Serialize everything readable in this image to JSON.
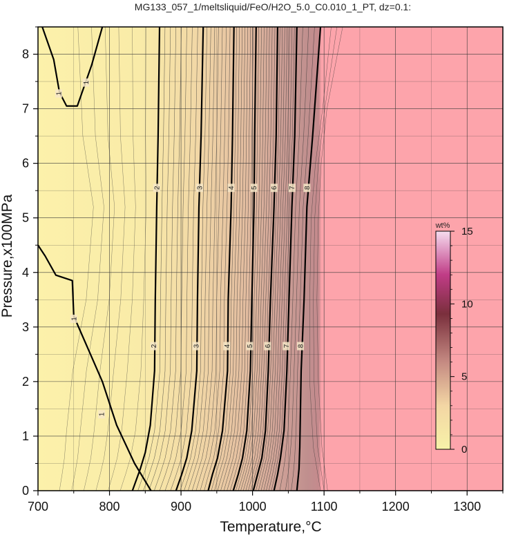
{
  "chart_data": {
    "type": "heatmap",
    "title": "MG133_057_1/meltsliquid/FeO/H2O_5.0_C0.010_1_PT, dz=0.1:",
    "xlabel": "Temperature,°C",
    "ylabel": "Pressure,x100MPa",
    "xlim": [
      700,
      1350
    ],
    "ylim": [
      0,
      8.5
    ],
    "x_ticks": [
      700,
      800,
      900,
      1000,
      1100,
      1200,
      1300
    ],
    "y_ticks": [
      0,
      1,
      2,
      3,
      4,
      5,
      6,
      7,
      8
    ],
    "grid": true,
    "colorbar": {
      "label": "wt%",
      "range": [
        0,
        15
      ],
      "ticks": [
        0,
        5,
        10,
        15
      ],
      "colors": [
        "#f7f2a8",
        "#f3d6a4",
        "#c58a82",
        "#7a2f3c",
        "#c03c86",
        "#f6dcef"
      ]
    },
    "region_colors": {
      "low": "#fcf0a8",
      "high": "#fda4ab"
    },
    "major_contours": [
      {
        "level": "1",
        "points": [
          [
            706,
            8.5
          ],
          [
            722,
            7.9
          ],
          [
            730,
            7.3
          ],
          [
            740,
            7.05
          ],
          [
            755,
            7.05
          ],
          [
            775,
            7.8
          ],
          [
            790,
            8.5
          ]
        ]
      },
      {
        "level": "1",
        "points": [
          [
            700,
            4.5
          ],
          [
            710,
            4.3
          ],
          [
            725,
            3.95
          ],
          [
            748,
            3.85
          ],
          [
            750,
            3.2
          ],
          [
            770,
            2.6
          ],
          [
            790,
            2.0
          ],
          [
            810,
            1.2
          ],
          [
            835,
            0.5
          ],
          [
            858,
            0.0
          ]
        ]
      },
      {
        "level": "2",
        "points": [
          [
            870,
            8.5
          ],
          [
            868,
            6.5
          ],
          [
            866,
            5.2
          ],
          [
            864,
            3.5
          ],
          [
            863,
            2.2
          ],
          [
            857,
            1.2
          ],
          [
            850,
            0.7
          ],
          [
            843,
            0.4
          ],
          [
            832,
            0.0
          ]
        ]
      },
      {
        "level": "3",
        "points": [
          [
            931,
            8.5
          ],
          [
            928,
            6.5
          ],
          [
            925,
            5.2
          ],
          [
            923,
            3.5
          ],
          [
            922,
            2.2
          ],
          [
            915,
            1.1
          ],
          [
            908,
            0.6
          ],
          [
            901,
            0.3
          ],
          [
            893,
            0.0
          ]
        ]
      },
      {
        "level": "4",
        "points": [
          [
            974,
            8.5
          ],
          [
            972,
            6.5
          ],
          [
            970,
            5.2
          ],
          [
            966,
            3.5
          ],
          [
            965,
            2.2
          ],
          [
            958,
            1.1
          ],
          [
            951,
            0.6
          ],
          [
            944,
            0.3
          ],
          [
            938,
            0.0
          ]
        ]
      },
      {
        "level": "5",
        "points": [
          [
            1005,
            8.5
          ],
          [
            1003,
            6.5
          ],
          [
            1002,
            5.2
          ],
          [
            999,
            3.5
          ],
          [
            997,
            2.2
          ],
          [
            992,
            1.1
          ],
          [
            986,
            0.6
          ],
          [
            980,
            0.3
          ],
          [
            973,
            0.0
          ]
        ]
      },
      {
        "level": "6",
        "points": [
          [
            1035,
            8.5
          ],
          [
            1033,
            6.5
          ],
          [
            1030,
            5.2
          ],
          [
            1025,
            3.5
          ],
          [
            1022,
            2.2
          ],
          [
            1018,
            1.1
          ],
          [
            1013,
            0.6
          ],
          [
            1007,
            0.3
          ],
          [
            1001,
            0.0
          ]
        ]
      },
      {
        "level": "7",
        "points": [
          [
            1062,
            8.5
          ],
          [
            1059,
            6.5
          ],
          [
            1055,
            5.2
          ],
          [
            1051,
            3.5
          ],
          [
            1048,
            2.2
          ],
          [
            1044,
            1.1
          ],
          [
            1039,
            0.6
          ],
          [
            1035,
            0.3
          ],
          [
            1030,
            0.0
          ]
        ]
      },
      {
        "level": "8",
        "points": [
          [
            1095,
            8.5
          ],
          [
            1084,
            6.5
          ],
          [
            1076,
            5.2
          ],
          [
            1072,
            3.5
          ],
          [
            1068,
            2.2
          ],
          [
            1067,
            1.5
          ],
          [
            1066,
            0.8
          ],
          [
            1065,
            0.4
          ],
          [
            1062,
            0.0
          ]
        ]
      }
    ],
    "contour_labels": [
      {
        "text": "1",
        "x": 729,
        "y": 7.28
      },
      {
        "text": "1",
        "x": 767,
        "y": 7.48
      },
      {
        "text": "1",
        "x": 750,
        "y": 3.15
      },
      {
        "text": "1",
        "x": 789,
        "y": 1.4
      },
      {
        "text": "2",
        "x": 866,
        "y": 5.55
      },
      {
        "text": "2",
        "x": 862,
        "y": 2.65
      },
      {
        "text": "3",
        "x": 926,
        "y": 5.55
      },
      {
        "text": "3",
        "x": 921,
        "y": 2.65
      },
      {
        "text": "4",
        "x": 970,
        "y": 5.55
      },
      {
        "text": "4",
        "x": 964,
        "y": 2.65
      },
      {
        "text": "5",
        "x": 1002,
        "y": 5.55
      },
      {
        "text": "5",
        "x": 996,
        "y": 2.65
      },
      {
        "text": "6",
        "x": 1030,
        "y": 5.55
      },
      {
        "text": "6",
        "x": 1021,
        "y": 2.65
      },
      {
        "text": "7",
        "x": 1055,
        "y": 5.55
      },
      {
        "text": "7",
        "x": 1047,
        "y": 2.65
      },
      {
        "text": "8",
        "x": 1076,
        "y": 5.55
      },
      {
        "text": "8",
        "x": 1067,
        "y": 2.65
      }
    ]
  }
}
